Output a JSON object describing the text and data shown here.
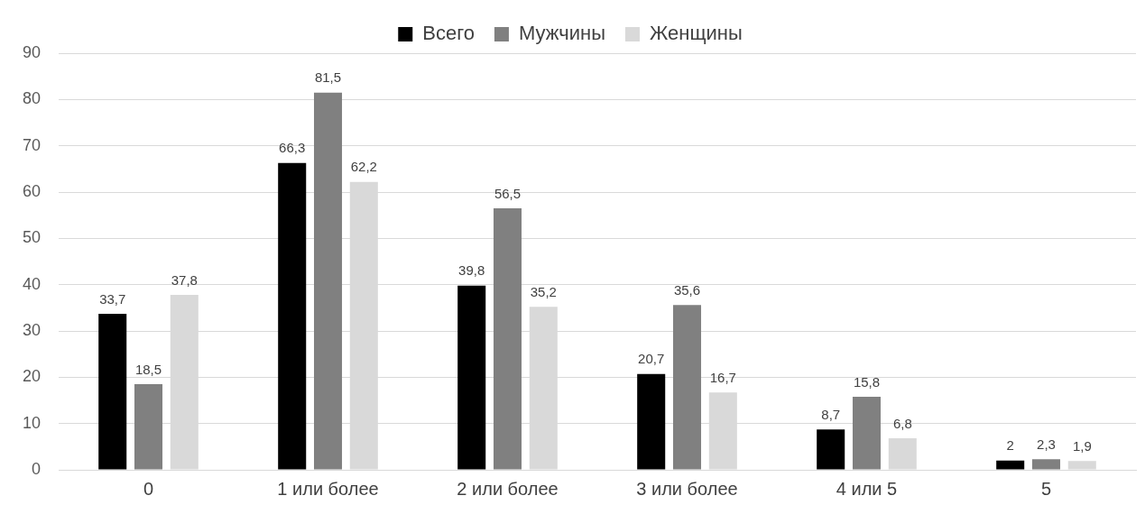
{
  "chart_data": {
    "type": "bar",
    "categories": [
      "0",
      "1 или более",
      "2 или более",
      "3 или более",
      "4 или 5",
      "5"
    ],
    "series": [
      {
        "name": "Всего",
        "color": "#000000",
        "values": [
          33.7,
          66.3,
          39.8,
          20.7,
          8.7,
          2
        ],
        "value_labels": [
          "33,7",
          "66,3",
          "39,8",
          "20,7",
          "8,7",
          "2"
        ]
      },
      {
        "name": "Мужчины",
        "color": "#808080",
        "values": [
          18.5,
          81.5,
          56.5,
          35.6,
          15.8,
          2.3
        ],
        "value_labels": [
          "18,5",
          "81,5",
          "56,5",
          "35,6",
          "15,8",
          "2,3"
        ]
      },
      {
        "name": "Женщины",
        "color": "#d9d9d9",
        "values": [
          37.8,
          62.2,
          35.2,
          16.7,
          6.8,
          1.9
        ],
        "value_labels": [
          "37,8",
          "62,2",
          "35,2",
          "16,7",
          "6,8",
          "1,9"
        ]
      }
    ],
    "ylim": [
      0,
      90
    ],
    "yticks": [
      0,
      10,
      20,
      30,
      40,
      50,
      60,
      70,
      80,
      90
    ],
    "grid": "y",
    "legend": "top"
  }
}
